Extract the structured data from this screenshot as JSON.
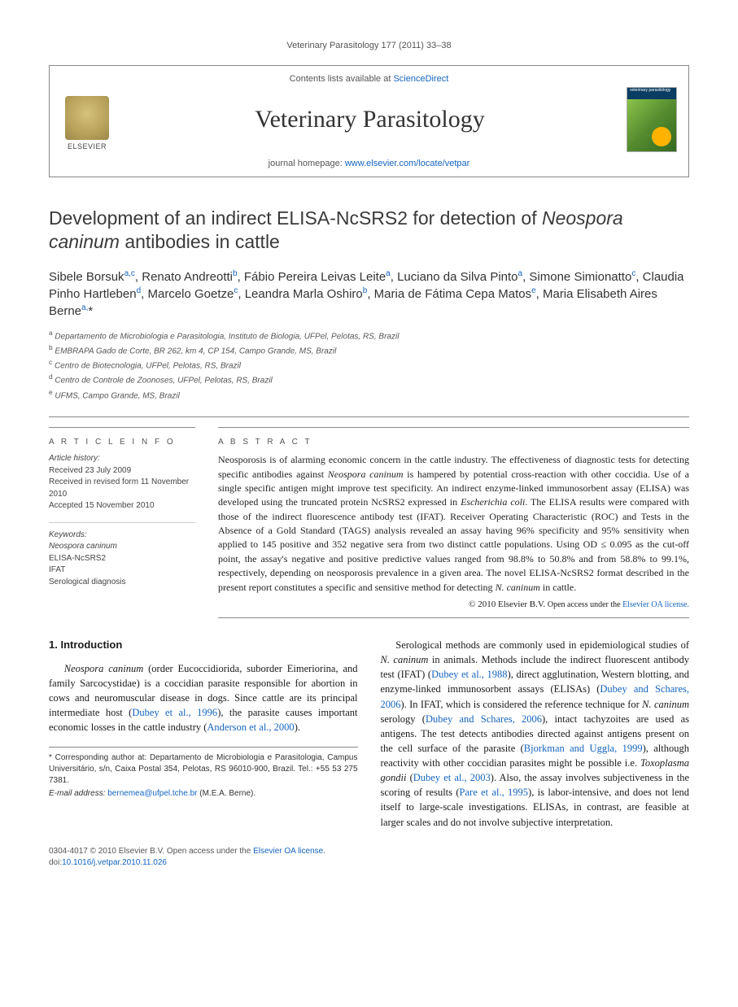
{
  "running_header": "Veterinary Parasitology 177 (2011) 33–38",
  "masthead": {
    "contents_line_pre": "Contents lists available at ",
    "contents_link": "ScienceDirect",
    "journal_name": "Veterinary Parasitology",
    "publisher_word": "ELSEVIER",
    "homepage_label": "journal homepage: ",
    "homepage_url": "www.elsevier.com/locate/vetpar",
    "cover_label": "veterinary parasitology"
  },
  "title_pre": "Development of an indirect ELISA-NcSRS2 for detection of ",
  "title_italic": "Neospora caninum",
  "title_post": " antibodies in cattle",
  "authors_html": "Sibele Borsuk<sup>a,c</sup>, Renato Andreotti<sup>b</sup>, Fábio Pereira Leivas Leite<sup>a</sup>, Luciano da Silva Pinto<sup>a</sup>, Simone Simionatto<sup>c</sup>, Claudia Pinho Hartleben<sup>d</sup>, Marcelo Goetze<sup>c</sup>, Leandra Marla Oshiro<sup>b</sup>, Maria de Fátima Cepa Matos<sup>e</sup>, Maria Elisabeth Aires Berne<sup>a,</sup>*",
  "affiliations": [
    {
      "sup": "a",
      "text": "Departamento de Microbiologia e Parasitologia, Instituto de Biologia, UFPel, Pelotas, RS, Brazil"
    },
    {
      "sup": "b",
      "text": "EMBRAPA Gado de Corte, BR 262, km 4, CP 154, Campo Grande, MS, Brazil"
    },
    {
      "sup": "c",
      "text": "Centro de Biotecnologia, UFPel, Pelotas, RS, Brazil"
    },
    {
      "sup": "d",
      "text": "Centro de Controle de Zoonoses, UFPel, Pelotas, RS, Brazil"
    },
    {
      "sup": "e",
      "text": "UFMS, Campo Grande, MS, Brazil"
    }
  ],
  "info": {
    "heading": "A R T I C L E   I N F O",
    "history_label": "Article history:",
    "received": "Received 23 July 2009",
    "revised": "Received in revised form 11 November 2010",
    "accepted": "Accepted 15 November 2010",
    "keywords_label": "Keywords:",
    "keywords": [
      "Neospora caninum",
      "ELISA-NcSRS2",
      "IFAT",
      "Serological diagnosis"
    ]
  },
  "abstract": {
    "heading": "A B S T R A C T",
    "text_pre": "Neosporosis is of alarming economic concern in the cattle industry. The effectiveness of diagnostic tests for detecting specific antibodies against ",
    "text_i1": "Neospora caninum",
    "text_mid1": " is hampered by potential cross-reaction with other coccidia. Use of a single specific antigen might improve test specificity. An indirect enzyme-linked immunosorbent assay (ELISA) was developed using the truncated protein NcSRS2 expressed in ",
    "text_i2": "Escherichia coli",
    "text_mid2": ". The ELISA results were compared with those of the indirect fluorescence antibody test (IFAT). Receiver Operating Characteristic (ROC) and Tests in the Absence of a Gold Standard (TAGS) analysis revealed an assay having 96% specificity and 95% sensitivity when applied to 145 positive and 352 negative sera from two distinct cattle populations. Using OD ≤ 0.095 as the cut-off point, the assay's negative and positive predictive values ranged from 98.8% to 50.8% and from 58.8% to 99.1%, respectively, depending on neosporosis prevalence in a given area. The novel ELISA-NcSRS2 format described in the present report constitutes a specific and sensitive method for detecting ",
    "text_i3": "N. caninum",
    "text_post": " in cattle.",
    "copyright_pre": "© 2010 Elsevier B.V. ",
    "copyright_link_pre": "Open access under the ",
    "copyright_link": "Elsevier OA license."
  },
  "body": {
    "section_heading": "1. Introduction",
    "p1_i1": "Neospora caninum",
    "p1_a": " (order Eucoccidiorida, suborder Eimeriorina, and family Sarcocystidae) is a coccidian parasite responsible for abortion in cows and neuromuscular disease in dogs. Since cattle are its principal intermediate host (",
    "p1_c1": "Dubey et al., 1996",
    "p1_b": "), the parasite causes important economic losses in the cattle industry (",
    "p1_c2": "Anderson et al., 2000",
    "p1_c": ").",
    "p2_a": "Serological methods are commonly used in epidemiological studies of ",
    "p2_i1": "N. caninum",
    "p2_b": " in animals. Methods include the indirect fluorescent antibody test (IFAT) (",
    "p2_c1": "Dubey et al., 1988",
    "p2_c": "), direct agglutination, Western blotting, and enzyme-linked immunosorbent assays (ELISAs) (",
    "p2_c2": "Dubey and Schares, 2006",
    "p2_d": "). In IFAT, which is considered the reference technique for ",
    "p2_i2": "N. caninum",
    "p2_e": " serology (",
    "p2_c3": "Dubey and Schares, 2006",
    "p2_f": "), intact tachyzoites are used as antigens. The test detects antibodies directed against antigens present on the cell surface of the parasite (",
    "p2_c4": "Bjorkman and Uggla, 1999",
    "p2_g": "), although reactivity with other coccidian parasites might be possible i.e. ",
    "p2_i3": "Toxoplasma gondii",
    "p2_h": " (",
    "p2_c5": "Dubey et al., 2003",
    "p2_i": "). Also, the assay involves subjectiveness in the scoring of results (",
    "p2_c6": "Pare et al., 1995",
    "p2_j": "), is labor-intensive, and does not lend itself to large-scale investigations. ELISAs, in contrast, are feasible at larger scales and do not involve subjective interpretation."
  },
  "corr": {
    "text": "* Corresponding author at: Departamento de Microbiologia e Parasitologia, Campus Universitário, s/n, Caixa Postal 354, Pelotas, RS 96010-900, Brazil. Tel.: +55 53 275 7381.",
    "email_label": "E-mail address: ",
    "email": "bernemea@ufpel.tche.br",
    "email_post": " (M.E.A. Berne)."
  },
  "footer": {
    "line1_pre": "0304-4017 © 2010 Elsevier B.V. ",
    "line1_link_pre": "Open access under the ",
    "line1_link": "Elsevier OA license.",
    "doi_label": "doi:",
    "doi": "10.1016/j.vetpar.2010.11.026"
  },
  "colors": {
    "link": "#1565c0",
    "rule": "#888888",
    "text": "#1a1a1a",
    "muted": "#555555"
  }
}
